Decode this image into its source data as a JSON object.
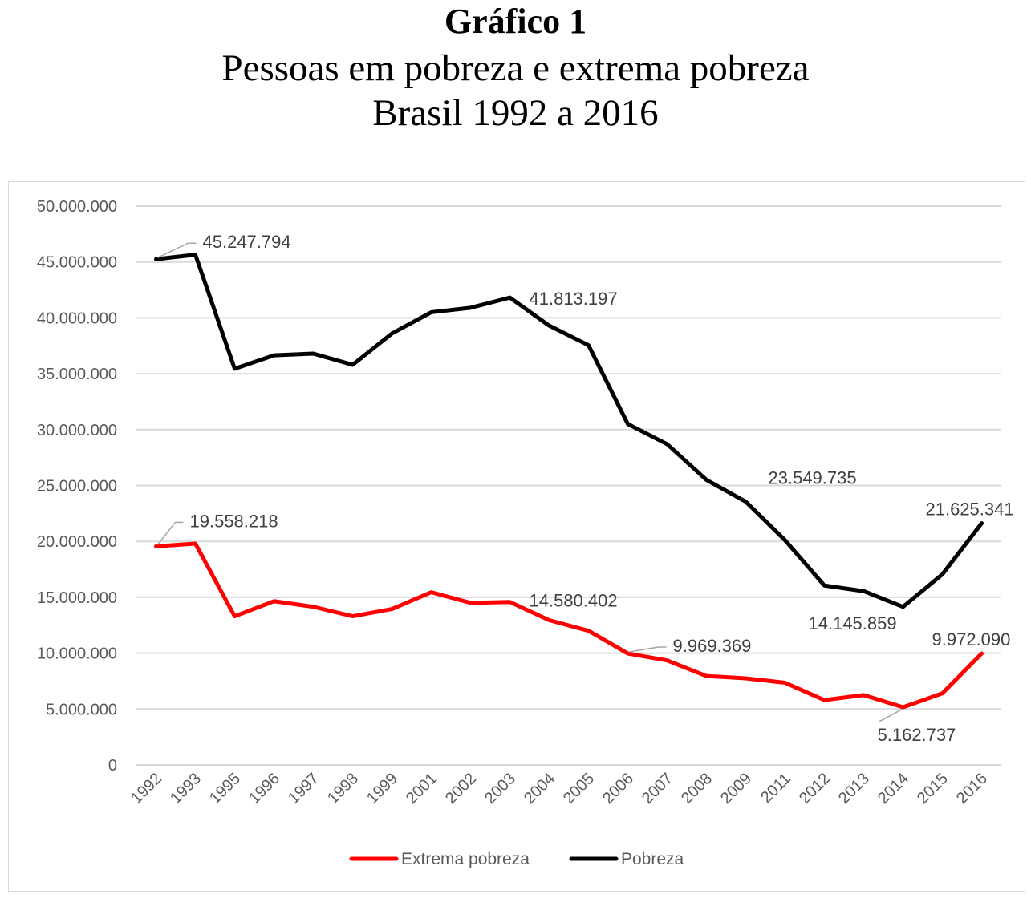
{
  "heading": {
    "title": "Gráfico 1",
    "subtitle_1": "Pessoas em pobreza e extrema pobreza",
    "subtitle_2": "Brasil 1992 a 2016"
  },
  "chart_data": {
    "type": "line",
    "title": "Gráfico 1 — Pessoas em pobreza e extrema pobreza — Brasil 1992 a 2016",
    "xlabel": "",
    "ylabel": "",
    "categories": [
      "1992",
      "1993",
      "1995",
      "1996",
      "1997",
      "1998",
      "1999",
      "2001",
      "2002",
      "2003",
      "2004",
      "2005",
      "2006",
      "2007",
      "2008",
      "2009",
      "2011",
      "2012",
      "2013",
      "2014",
      "2015",
      "2016"
    ],
    "ylim": [
      0,
      50000000
    ],
    "yticks": [
      {
        "value": 0,
        "label": "0"
      },
      {
        "value": 5000000,
        "label": "5.000.000"
      },
      {
        "value": 10000000,
        "label": "10.000.000"
      },
      {
        "value": 15000000,
        "label": "15.000.000"
      },
      {
        "value": 20000000,
        "label": "20.000.000"
      },
      {
        "value": 25000000,
        "label": "25.000.000"
      },
      {
        "value": 30000000,
        "label": "30.000.000"
      },
      {
        "value": 35000000,
        "label": "35.000.000"
      },
      {
        "value": 40000000,
        "label": "40.000.000"
      },
      {
        "value": 45000000,
        "label": "45.000.000"
      },
      {
        "value": 50000000,
        "label": "50.000.000"
      }
    ],
    "grid": true,
    "legend_position": "bottom",
    "series": [
      {
        "name": "Extrema pobreza",
        "color": "#ff0000",
        "values": [
          19558218,
          19800000,
          13300000,
          14650000,
          14150000,
          13300000,
          13950000,
          15450000,
          14500000,
          14580402,
          12950000,
          12000000,
          9969369,
          9350000,
          7950000,
          7750000,
          7350000,
          5800000,
          6250000,
          5162737,
          6400000,
          9972090
        ],
        "labels": [
          {
            "index": 0,
            "text": "19.558.218"
          },
          {
            "index": 9,
            "text": "14.580.402"
          },
          {
            "index": 12,
            "text": "9.969.369"
          },
          {
            "index": 19,
            "text": "5.162.737"
          },
          {
            "index": 21,
            "text": "9.972.090"
          }
        ]
      },
      {
        "name": "Pobreza",
        "color": "#000000",
        "values": [
          45247794,
          45650000,
          35450000,
          36650000,
          36800000,
          35800000,
          38600000,
          40500000,
          40900000,
          41813197,
          39300000,
          37550000,
          30500000,
          28700000,
          25500000,
          23549735,
          20100000,
          16050000,
          15550000,
          14145859,
          17050000,
          21625341
        ],
        "labels": [
          {
            "index": 0,
            "text": "45.247.794"
          },
          {
            "index": 9,
            "text": "41.813.197"
          },
          {
            "index": 15,
            "text": "23.549.735"
          },
          {
            "index": 19,
            "text": "14.145.859"
          },
          {
            "index": 21,
            "text": "21.625.341"
          }
        ]
      }
    ]
  }
}
